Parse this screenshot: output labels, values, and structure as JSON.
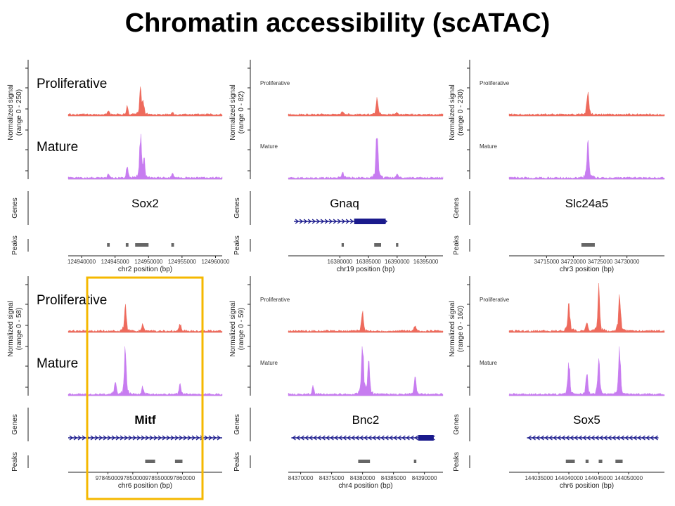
{
  "title": "Chromatin accessibility (scATAC)",
  "colors": {
    "proliferative": "#ee6a5c",
    "mature": "#c77cf0",
    "gene": "#1a1a8c",
    "peak": "#666666",
    "highlight": "#f5b800"
  },
  "chart_data": [
    {
      "type": "area",
      "gene": "Sox2",
      "gene_strand": "+",
      "ylabel": "Normalized signal (range 0 - 250)",
      "tracks": [
        {
          "name": "Proliferative",
          "label_size": "large",
          "peaks": [
            {
              "x": 124944000,
              "h": 0.08
            },
            {
              "x": 124946800,
              "h": 0.14
            },
            {
              "x": 124948800,
              "h": 0.45
            },
            {
              "x": 124949200,
              "h": 0.25
            },
            {
              "x": 124953600,
              "h": 0.04
            }
          ]
        },
        {
          "name": "Mature",
          "label_size": "large",
          "peaks": [
            {
              "x": 124944000,
              "h": 0.08
            },
            {
              "x": 124946800,
              "h": 0.22
            },
            {
              "x": 124948800,
              "h": 0.9
            },
            {
              "x": 124949300,
              "h": 0.35
            },
            {
              "x": 124953600,
              "h": 0.1
            }
          ]
        }
      ],
      "genes_track": "Genes",
      "peaks_track": "Peaks",
      "peak_regions": [
        [
          124943800,
          124944200
        ],
        [
          124946600,
          124947000
        ],
        [
          124948000,
          124950000
        ],
        [
          124953400,
          124953800
        ]
      ],
      "x_ticks": [
        "124940000",
        "124945000",
        "124950000",
        "124955000",
        "124960000"
      ],
      "xlim": [
        124938000,
        124961000
      ],
      "xlabel": "chr2 position (bp)"
    },
    {
      "type": "area",
      "gene": "Gnaq",
      "gene_strand": "+",
      "gene_start": 16372000,
      "gene_end": 16388000,
      "gene_thick_start": 16382500,
      "ylabel": "Normalized signal (range 0 - 82)",
      "tracks": [
        {
          "name": "Proliferative",
          "label_size": "small",
          "peaks": [
            {
              "x": 16380500,
              "h": 0.06
            },
            {
              "x": 16386500,
              "h": 0.3
            },
            {
              "x": 16390000,
              "h": 0.04
            }
          ]
        },
        {
          "name": "Mature",
          "label_size": "small",
          "peaks": [
            {
              "x": 16380500,
              "h": 0.12
            },
            {
              "x": 16386500,
              "h": 0.95
            },
            {
              "x": 16390000,
              "h": 0.1
            }
          ]
        }
      ],
      "genes_track": "Genes",
      "peaks_track": "Peaks",
      "peak_regions": [
        [
          16380300,
          16380700
        ],
        [
          16386000,
          16387200
        ],
        [
          16389800,
          16390200
        ]
      ],
      "x_ticks": [
        "16380000",
        "16385000",
        "16390000",
        "16395000"
      ],
      "xlim": [
        16371000,
        16398000
      ],
      "xlabel": "chr19 position (bp)"
    },
    {
      "type": "area",
      "gene": "Slc24a5",
      "gene_strand": "+",
      "ylabel": "Normalized signal (range 0 - 230)",
      "tracks": [
        {
          "name": "Proliferative",
          "label_size": "small",
          "peaks": [
            {
              "x": 34722700,
              "h": 0.55
            }
          ]
        },
        {
          "name": "Mature",
          "label_size": "small",
          "peaks": [
            {
              "x": 34722700,
              "h": 0.75
            }
          ]
        }
      ],
      "genes_track": "Genes",
      "peaks_track": "Peaks",
      "peak_regions": [
        [
          34721500,
          34724000
        ]
      ],
      "x_ticks": [
        "34715000",
        "34720000",
        "34725000",
        "34730000"
      ],
      "xlim": [
        34708000,
        34737000
      ],
      "xlabel": "chr3 position (bp)"
    },
    {
      "type": "area",
      "gene": "Mitf",
      "gene_bold": true,
      "gene_strand": "+",
      "gene_start": 97837000,
      "gene_end": 97868000,
      "ylabel": "Normalized signal (range 0 - 58)",
      "tracks": [
        {
          "name": "Proliferative",
          "label_size": "large",
          "peaks": [
            {
              "x": 97848500,
              "h": 0.5
            },
            {
              "x": 97852000,
              "h": 0.12
            },
            {
              "x": 97859500,
              "h": 0.14
            }
          ]
        },
        {
          "name": "Mature",
          "label_size": "large",
          "peaks": [
            {
              "x": 97846500,
              "h": 0.25
            },
            {
              "x": 97848500,
              "h": 0.92
            },
            {
              "x": 97852000,
              "h": 0.15
            },
            {
              "x": 97859500,
              "h": 0.22
            }
          ]
        }
      ],
      "genes_track": "Genes",
      "peaks_track": "Peaks",
      "peak_regions": [
        [
          97852500,
          97854500
        ],
        [
          97858500,
          97860000
        ]
      ],
      "x_ticks": [
        "97845000",
        "97850000",
        "97855000",
        "97860000"
      ],
      "xlim": [
        97837000,
        97868000
      ],
      "xlabel": "chr6 position (bp)"
    },
    {
      "type": "area",
      "gene": "Bnc2",
      "gene_strand": "-",
      "gene_start": 84368500,
      "gene_end": 84391500,
      "gene_thick_start": 84389000,
      "ylabel": "Normalized signal (range 0 - 59)",
      "tracks": [
        {
          "name": "Proliferative",
          "label_size": "small",
          "peaks": [
            {
              "x": 84380000,
              "h": 0.35
            },
            {
              "x": 84388500,
              "h": 0.12
            }
          ]
        },
        {
          "name": "Mature",
          "label_size": "small",
          "peaks": [
            {
              "x": 84372000,
              "h": 0.15
            },
            {
              "x": 84380000,
              "h": 0.95
            },
            {
              "x": 84381000,
              "h": 0.6
            },
            {
              "x": 84388500,
              "h": 0.35
            }
          ]
        }
      ],
      "genes_track": "Genes",
      "peaks_track": "Peaks",
      "peak_regions": [
        [
          84379300,
          84381200
        ],
        [
          84388300,
          84388700
        ]
      ],
      "x_ticks": [
        "84370000",
        "84375000",
        "84380000",
        "84385000",
        "84390000"
      ],
      "xlim": [
        84368000,
        84393000
      ],
      "xlabel": "chr4 position (bp)"
    },
    {
      "type": "area",
      "gene": "Sox5",
      "gene_strand": "-",
      "gene_start": 144033000,
      "gene_end": 144055000,
      "ylabel": "Normalized signal (range 0 - 160)",
      "tracks": [
        {
          "name": "Proliferative",
          "label_size": "small",
          "peaks": [
            {
              "x": 144040000,
              "h": 0.6
            },
            {
              "x": 144043000,
              "h": 0.18
            },
            {
              "x": 144045000,
              "h": 0.85
            },
            {
              "x": 144048500,
              "h": 0.8
            }
          ]
        },
        {
          "name": "Mature",
          "label_size": "small",
          "peaks": [
            {
              "x": 144040000,
              "h": 0.65
            },
            {
              "x": 144043000,
              "h": 0.4
            },
            {
              "x": 144045000,
              "h": 0.75
            },
            {
              "x": 144048500,
              "h": 0.95
            }
          ]
        }
      ],
      "genes_track": "Genes",
      "peaks_track": "Peaks",
      "peak_regions": [
        [
          144039500,
          144041000
        ],
        [
          144042800,
          144043300
        ],
        [
          144045000,
          144045600
        ],
        [
          144047800,
          144049000
        ]
      ],
      "x_ticks": [
        "144035000",
        "144040000",
        "144045000",
        "144050000"
      ],
      "xlim": [
        144030000,
        144056000
      ],
      "xlabel": "chr6 position (bp)"
    }
  ]
}
